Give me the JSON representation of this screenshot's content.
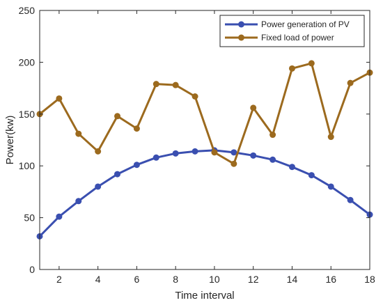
{
  "chart_data": {
    "type": "line",
    "xlabel": "Time interval",
    "ylabel": "Power(kw)",
    "xlim": [
      1,
      18
    ],
    "ylim": [
      0,
      250
    ],
    "xticks": [
      2,
      4,
      6,
      8,
      10,
      12,
      14,
      16,
      18
    ],
    "yticks": [
      0,
      50,
      100,
      150,
      200,
      250
    ],
    "grid": false,
    "legend_position": "top-right",
    "x": [
      1,
      2,
      3,
      4,
      5,
      6,
      7,
      8,
      9,
      10,
      11,
      12,
      13,
      14,
      15,
      16,
      17,
      18
    ],
    "series": [
      {
        "name": "Power generation of PV",
        "color": "#3a4fb0",
        "marker": "circle",
        "values": [
          32,
          51,
          66,
          80,
          92,
          101,
          108,
          112,
          114,
          115,
          113,
          110,
          106,
          99,
          91,
          80,
          67,
          53
        ]
      },
      {
        "name": "Fixed load of power",
        "color": "#9c6a1e",
        "marker": "circle",
        "values": [
          150,
          165,
          131,
          114,
          148,
          136,
          179,
          178,
          167,
          113,
          102,
          156,
          130,
          194,
          199,
          128,
          180,
          190
        ]
      }
    ]
  }
}
